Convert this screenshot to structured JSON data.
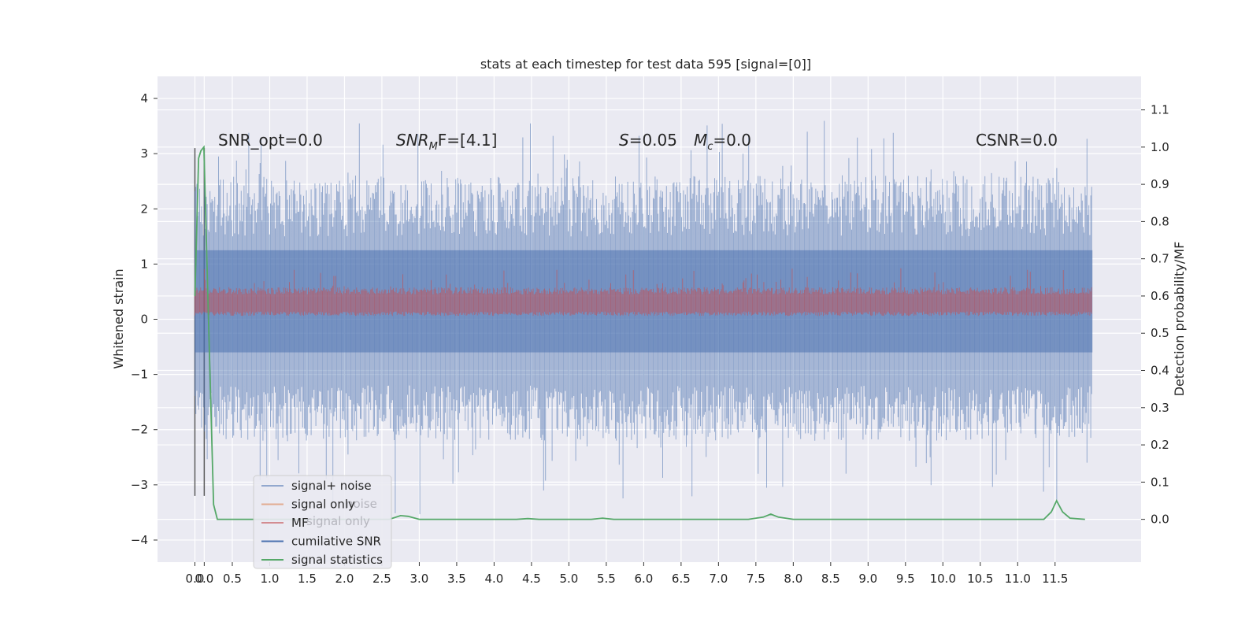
{
  "chart_data": {
    "type": "line",
    "title": "stats at each timestep for test data 595 [signal=[0]]",
    "ylabel": "Whitened strain",
    "y2label": "Detection probability/MF",
    "xlim": [
      -0.5,
      12.65
    ],
    "ylim": [
      -4.4,
      4.4
    ],
    "y2lim": [
      -0.115,
      1.19
    ],
    "x_ticks": [
      "0.0",
      "0.0",
      "0.5",
      "1.0",
      "1.5",
      "2.0",
      "2.5",
      "3.0",
      "3.5",
      "4.0",
      "4.5",
      "5.0",
      "5.5",
      "6.0",
      "6.5",
      "7.0",
      "7.5",
      "8.0",
      "8.5",
      "9.0",
      "9.5",
      "10.0",
      "10.5",
      "11.0",
      "11.5"
    ],
    "x_tick_values": [
      0.0,
      0.125,
      0.5,
      1.0,
      1.5,
      2.0,
      2.5,
      3.0,
      3.5,
      4.0,
      4.5,
      5.0,
      5.5,
      6.0,
      6.5,
      7.0,
      7.5,
      8.0,
      8.5,
      9.0,
      9.5,
      10.0,
      10.5,
      11.0,
      11.5
    ],
    "y_ticks": [
      -4,
      -3,
      -2,
      -1,
      0,
      1,
      2,
      3,
      4
    ],
    "y_tick_labels": [
      "−4",
      "−3",
      "−2",
      "−1",
      "0",
      "1",
      "2",
      "3",
      "4"
    ],
    "y2_ticks": [
      0.0,
      0.1,
      0.2,
      0.3,
      0.4,
      0.5,
      0.6,
      0.7,
      0.8,
      0.9,
      1.0,
      1.1
    ],
    "y2_tick_labels": [
      "0.0",
      "0.1",
      "0.2",
      "0.3",
      "0.4",
      "0.5",
      "0.6",
      "0.7",
      "0.8",
      "0.9",
      "1.0",
      "1.1"
    ],
    "vlines": [
      0.0,
      0.125
    ],
    "annotations": [
      {
        "text": "SNR_opt=0.0"
      },
      {
        "text": "SNR",
        "sub": "M",
        "tail": "F=[4.1]"
      },
      {
        "text": "S",
        "tail": "=0.05"
      },
      {
        "text": "M",
        "sub": "c",
        "tail": "=0.0"
      },
      {
        "text": "CSNR=0.0"
      }
    ],
    "grid": true,
    "legend_position": "lower-left",
    "legend": [
      "signal+ noise",
      "signal only",
      "MF",
      "cumilative SNR",
      "signal statistics"
    ],
    "legend_ghost": [
      "noise",
      "signal only"
    ],
    "colors": {
      "signal_noise": "#4c72b0",
      "signal_only": "#dd8452",
      "mf": "#c44e52",
      "cumulative_snr": "#4c72b0",
      "signal_statistics": "#55a868",
      "background": "#eaeaf2"
    },
    "series": [
      {
        "name": "signal+ noise",
        "description_stats": {
          "x_range": [
            0.0,
            12.0
          ],
          "approx_band": [
            -3.6,
            4.0
          ],
          "typical_band": [
            -2.2,
            2.5
          ]
        }
      },
      {
        "name": "signal only",
        "values": [
          0
        ]
      },
      {
        "name": "MF",
        "description_stats": {
          "approx_band": [
            0.0,
            1.0
          ],
          "typical_band": [
            0.05,
            0.6
          ]
        }
      },
      {
        "name": "signal statistics",
        "x": [
          0.0,
          0.05,
          0.08,
          0.12,
          0.18,
          0.25,
          0.3,
          0.5,
          1.0,
          2.0,
          2.6,
          2.75,
          2.85,
          3.0,
          3.5,
          4.0,
          4.3,
          4.45,
          4.6,
          5.0,
          5.3,
          5.45,
          5.6,
          6.0,
          7.0,
          7.4,
          7.6,
          7.7,
          7.8,
          8.0,
          8.5,
          9.0,
          9.5,
          10.0,
          11.0,
          11.35,
          11.45,
          11.52,
          11.6,
          11.7,
          11.9
        ],
        "y": [
          0.6,
          0.97,
          0.99,
          1.0,
          0.55,
          0.04,
          0.0,
          0.0,
          0.0,
          0.0,
          0.0,
          0.01,
          0.008,
          0.0,
          0.0,
          0.0,
          0.0,
          0.002,
          0.0,
          0.0,
          0.0,
          0.003,
          0.0,
          0.0,
          0.0,
          0.0,
          0.006,
          0.014,
          0.006,
          0.0,
          0.0,
          0.0,
          0.0,
          0.0,
          0.0,
          0.0,
          0.02,
          0.05,
          0.02,
          0.003,
          0.0
        ]
      }
    ]
  }
}
